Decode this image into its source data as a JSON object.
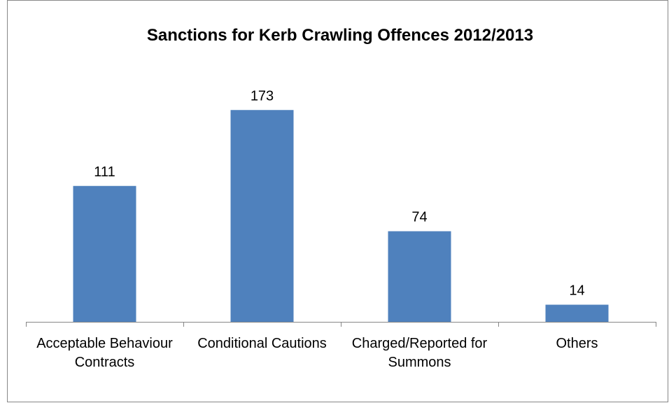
{
  "chart_data": {
    "type": "bar",
    "title": "Sanctions for Kerb Crawling Offences 2012/2013",
    "categories": [
      "Acceptable Behaviour Contracts",
      "Conditional Cautions",
      "Charged/Reported for Summons",
      "Others"
    ],
    "values": [
      111,
      173,
      74,
      14
    ],
    "color": "#4f81bd",
    "ylim": [
      0,
      200
    ]
  }
}
